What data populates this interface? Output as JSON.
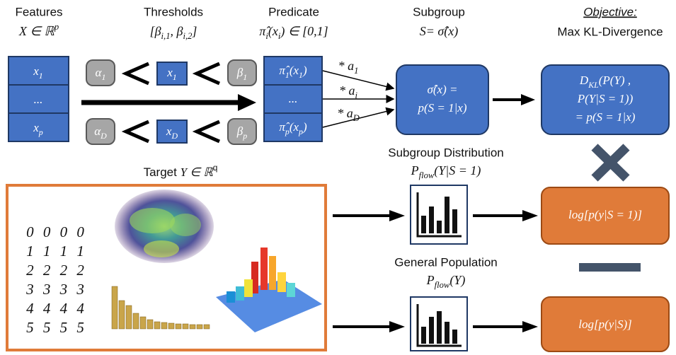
{
  "headers": [
    {
      "title": "Features",
      "formula": [
        "X ∈ ℝ",
        {
          "sup": "p"
        }
      ]
    },
    {
      "title": "Thresholds",
      "formula": [
        "[β",
        {
          "sub": "i,1"
        },
        ", β",
        {
          "sub": "i,2"
        },
        "]"
      ]
    },
    {
      "title": "Predicate",
      "formula": [
        "π̂",
        {
          "sub": "i"
        },
        "(x",
        {
          "sub": "i"
        },
        ") ∈ [0,1]"
      ]
    },
    {
      "title": "Subgroup",
      "formula": [
        "S= σ̂(x)"
      ]
    },
    {
      "title": "Objective:",
      "subtitle": "Max KL-Divergence"
    }
  ],
  "features": [
    [
      "x",
      {
        "sub": "1"
      }
    ],
    [
      "..."
    ],
    [
      "x",
      {
        "sub": "p"
      }
    ]
  ],
  "thresholds": [
    {
      "alpha": [
        "α",
        {
          "sub": "1"
        }
      ],
      "x": [
        "x",
        {
          "sub": "1"
        }
      ],
      "beta": [
        "β",
        {
          "sub": "1"
        }
      ]
    },
    {
      "alpha": [
        "α",
        {
          "sub": "D"
        }
      ],
      "x": [
        "x",
        {
          "sub": "D"
        }
      ],
      "beta": [
        "β",
        {
          "sub": "p"
        }
      ]
    }
  ],
  "predicates": [
    [
      "π̂",
      {
        "sub": "1"
      },
      "(x",
      {
        "sub": "1"
      },
      ")"
    ],
    [
      "..."
    ],
    [
      "π̂",
      {
        "sub": "p"
      },
      "(x",
      {
        "sub": "p"
      },
      ")"
    ]
  ],
  "weights": [
    [
      "* a",
      {
        "sub": "1"
      }
    ],
    [
      "* a",
      {
        "sub": "i"
      }
    ],
    [
      "* a",
      {
        "sub": "D"
      }
    ]
  ],
  "subgroup_box": [
    [
      "σ̂(x) ="
    ],
    [
      "p(S = 1|x)"
    ]
  ],
  "kl_box": [
    [
      "D",
      {
        "sub": "KL"
      },
      "(P(Y) ,"
    ],
    [
      "P(Y|S = 1))"
    ],
    [
      "= p(S = 1|x)"
    ]
  ],
  "target": [
    "Target ",
    {
      "it": "Y ∈ ℝ"
    },
    {
      "sup": "q"
    }
  ],
  "digits": [
    "0 0 0 0",
    "1 1 1 1",
    "2 2 2 2",
    "3 3 3 3",
    "4 4 4 4",
    "5 5 5 5"
  ],
  "distributions": [
    {
      "title": "Subgroup Distribution",
      "formula": [
        "P",
        {
          "sub": "flow"
        },
        "(Y|S = 1)"
      ]
    },
    {
      "title": "General Population",
      "formula": [
        "P",
        {
          "sub": "flow"
        },
        "(Y)"
      ]
    }
  ],
  "outputs": [
    [
      "log[p(y|S = 1)]"
    ],
    [
      "log[p(y|S)]"
    ]
  ]
}
